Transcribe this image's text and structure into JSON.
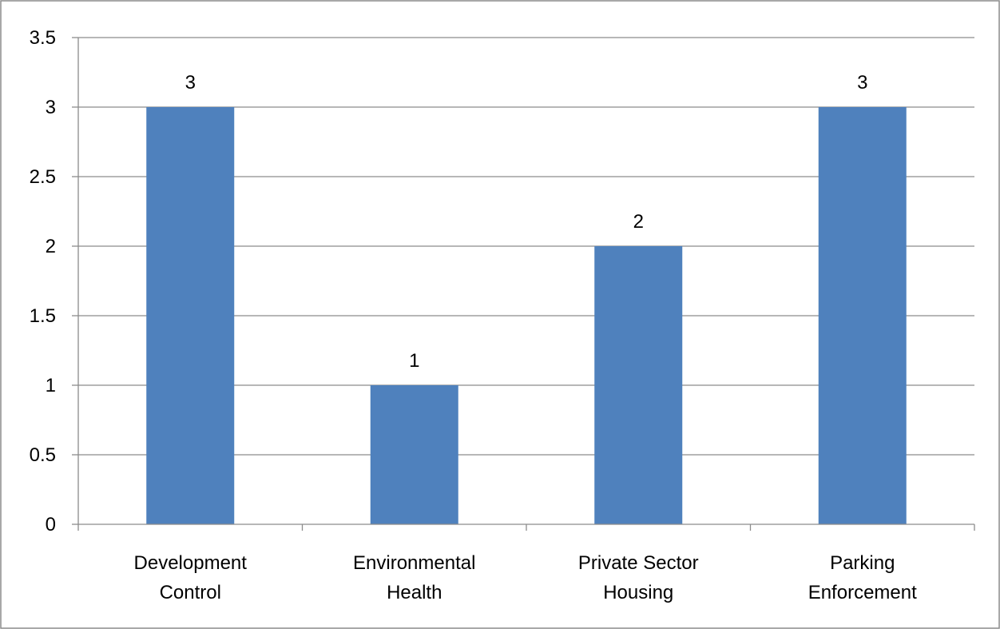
{
  "chart_data": {
    "type": "bar",
    "title": "",
    "xlabel": "",
    "ylabel": "",
    "categories": [
      [
        "Development",
        "Control"
      ],
      [
        "Environmental",
        "Health"
      ],
      [
        "Private Sector",
        "Housing"
      ],
      [
        "Parking",
        "Enforcement"
      ]
    ],
    "values": [
      3,
      1,
      2,
      3
    ],
    "data_labels": [
      "3",
      "1",
      "2",
      "3"
    ],
    "ylim": [
      0,
      3.5
    ],
    "yticks": [
      0,
      0.5,
      1,
      1.5,
      2,
      2.5,
      3,
      3.5
    ],
    "ytick_labels": [
      "0",
      "0.5",
      "1",
      "1.5",
      "2",
      "2.5",
      "3",
      "3.5"
    ],
    "grid": true,
    "legend": "none",
    "colors": {
      "bar": "#4f81bd",
      "grid": "#8c8c8c",
      "text": "#000000"
    }
  }
}
